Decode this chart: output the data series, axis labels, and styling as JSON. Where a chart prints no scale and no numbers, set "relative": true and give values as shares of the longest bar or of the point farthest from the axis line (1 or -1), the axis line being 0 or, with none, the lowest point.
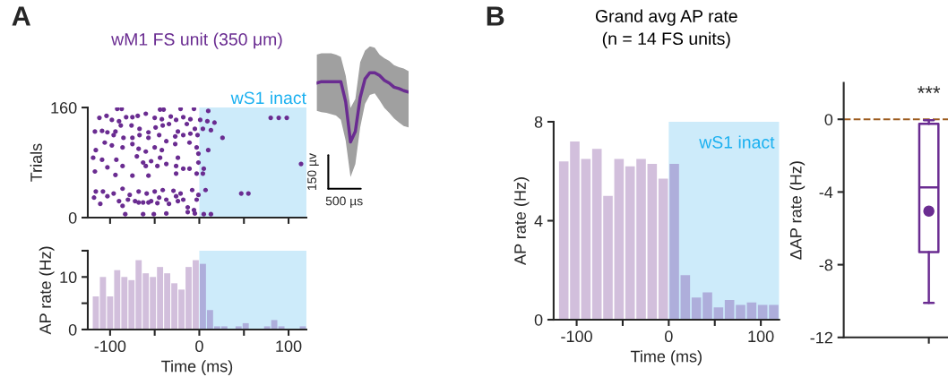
{
  "chart_data": [
    {
      "type": "scatter",
      "title": "wM1 FS unit (350 μm)",
      "ylabel": "Trials",
      "marker": "circle",
      "xlim": [
        -125,
        120
      ],
      "ylim": [
        0,
        160
      ],
      "yticks": [
        0,
        160
      ],
      "xticks": [
        {
          "value": -100,
          "label": null
        },
        {
          "value": -50,
          "label": null
        },
        {
          "value": 0,
          "label": null
        },
        {
          "value": 50,
          "label": null
        },
        {
          "value": 100,
          "label": null
        }
      ],
      "tick_labels": "y",
      "grid": false,
      "legend": false,
      "bands": [
        {
          "axis": "x",
          "from": 0,
          "to": 120,
          "label": "wS1 inact",
          "color": "#cdebfa"
        }
      ],
      "annotations": [
        "A"
      ],
      "series": [
        {
          "color": "#6a2c91",
          "x": [
            -92,
            -87,
            -44,
            -40,
            -21,
            -6,
            10,
            -112,
            -104,
            -98,
            -90,
            -82,
            -75,
            -69,
            -60,
            -50,
            -42,
            -32,
            -26,
            -18,
            -10,
            1,
            9,
            17,
            -117,
            -109,
            -103,
            -94,
            -88,
            -76,
            -67,
            -57,
            -49,
            -41,
            -34,
            -24,
            -14,
            -5,
            4,
            13,
            -106,
            -96,
            -85,
            -75,
            -67,
            -57,
            -45,
            -37,
            -27,
            -18,
            -10,
            -2,
            -116,
            -98,
            -86,
            -75,
            -68,
            -60,
            -50,
            -42,
            -27,
            -11,
            -3,
            10,
            -119,
            -109,
            -93,
            -70,
            -63,
            -54,
            -44,
            -24,
            -1,
            -103,
            -86,
            -60,
            -47,
            -37,
            -26,
            -11,
            -1,
            5,
            -117,
            -94,
            -75,
            -57,
            -18,
            -26,
            -3,
            4,
            -116,
            -108,
            -96,
            -86,
            -78,
            -68,
            -59,
            -50,
            -41,
            -29,
            -21,
            -8,
            -1,
            7,
            -118,
            -103,
            -90,
            -80,
            -72,
            -63,
            -54,
            -45,
            -37,
            -26,
            -18,
            -3,
            -111,
            -86,
            -68,
            -57,
            -47,
            -34,
            -24,
            -13,
            -6,
            -83,
            -63,
            -51,
            -37,
            -13,
            -5,
            5,
            13,
            26,
            80,
            89,
            98,
            114,
            47,
            55
          ],
          "values": [
            158,
            158,
            157,
            157,
            158,
            158,
            155,
            145,
            148,
            142,
            140,
            146,
            146,
            148,
            151,
            145,
            143,
            147,
            142,
            146,
            143,
            142,
            140,
            138,
            125,
            126,
            124,
            125,
            134,
            134,
            129,
            124,
            131,
            134,
            136,
            125,
            136,
            129,
            129,
            127,
            109,
            120,
            116,
            116,
            120,
            116,
            120,
            111,
            118,
            120,
            122,
            120,
            98,
            105,
            102,
            107,
            100,
            96,
            102,
            98,
            107,
            109,
            102,
            98,
            87,
            84,
            84,
            89,
            80,
            82,
            87,
            87,
            93,
            73,
            75,
            75,
            75,
            78,
            75,
            71,
            80,
            71,
            67,
            62,
            61,
            61,
            71,
            64,
            64,
            64,
            38,
            38,
            35,
            42,
            33,
            38,
            35,
            38,
            40,
            39,
            35,
            40,
            33,
            40,
            29,
            31,
            24,
            26,
            24,
            22,
            24,
            29,
            26,
            31,
            26,
            26,
            20,
            17,
            22,
            22,
            21,
            20,
            24,
            15,
            11,
            5,
            5,
            5,
            6,
            8,
            6,
            5,
            5,
            116,
            145,
            145,
            145,
            78,
            35,
            35
          ]
        }
      ]
    },
    {
      "type": "line",
      "relative": true,
      "annotations": [
        "150 µv",
        "500 µs"
      ],
      "categories": [
        null,
        null,
        null,
        null,
        null,
        null,
        null,
        null,
        null,
        null,
        null,
        null,
        null,
        null,
        null,
        null,
        null,
        null,
        null,
        null
      ],
      "series": [
        {
          "color": "#6a2c91",
          "values": [
            0.85,
            0.87,
            0.87,
            0.87,
            0.87,
            0.87,
            0.58,
            0,
            0.15,
            0.64,
            0.91,
            1,
            1,
            0.96,
            0.89,
            0.85,
            0.79,
            0.77,
            0.74,
            0.72
          ],
          "upper": [
            1.26,
            1.28,
            1.28,
            1.28,
            1.26,
            1.23,
            0.96,
            0.49,
            0.62,
            1.15,
            1.32,
            1.38,
            1.36,
            1.26,
            1.21,
            1.17,
            1.11,
            1.08,
            1.06,
            1.02
          ],
          "lower": [
            0.45,
            0.43,
            0.42,
            0.4,
            0.38,
            0.32,
            0.02,
            -0.51,
            -0.32,
            0.21,
            0.55,
            0.68,
            0.7,
            0.6,
            0.49,
            0.42,
            0.34,
            0.28,
            0.23,
            0.21
          ]
        }
      ]
    },
    {
      "type": "histogram",
      "xlabel": "Time (ms)",
      "ylabel": "AP rate (Hz)",
      "xlim": [
        -125,
        120
      ],
      "ylim": [
        0,
        15
      ],
      "xticks": [
        -100,
        {
          "value": -50,
          "label": null
        },
        0,
        {
          "value": 50,
          "label": null
        },
        100
      ],
      "yticks": [
        0,
        {
          "value": 5,
          "label": null
        },
        10,
        {
          "value": 15,
          "label": null
        }
      ],
      "grid": false,
      "legend": false,
      "bands": [
        {
          "axis": "x",
          "from": 0,
          "to": 120,
          "color": "#cdebfa"
        }
      ],
      "bins": [
        -120,
        -112,
        -104,
        -96,
        -88,
        -80,
        -72,
        -64,
        -56,
        -48,
        -40,
        -32,
        -24,
        -16,
        -8,
        0,
        8,
        16,
        24,
        32,
        40,
        48,
        56,
        64,
        72,
        80,
        88,
        96,
        104,
        112,
        120
      ],
      "values": [
        6.3,
        10,
        6.3,
        11.3,
        10,
        9.4,
        13.2,
        10.7,
        10,
        11.9,
        10.7,
        8.8,
        7.6,
        11.9,
        13.2,
        12.5,
        3.7,
        0.6,
        0.6,
        0,
        0.6,
        1.2,
        0,
        0,
        0.6,
        1.8,
        0.6,
        0,
        0,
        0.6
      ],
      "colors": [
        "#d2bfdc",
        "#d2bfdc",
        "#d2bfdc",
        "#d2bfdc",
        "#d2bfdc",
        "#d2bfdc",
        "#d2bfdc",
        "#d2bfdc",
        "#d2bfdc",
        "#d2bfdc",
        "#d2bfdc",
        "#d2bfdc",
        "#d2bfdc",
        "#d2bfdc",
        "#d2bfdc",
        "#aeaedb",
        "#aeaedb",
        "#aeaedb",
        "#aeaedb",
        "#aeaedb",
        "#aeaedb",
        "#aeaedb",
        "#aeaedb",
        "#aeaedb",
        "#aeaedb",
        "#aeaedb",
        "#aeaedb",
        "#aeaedb",
        "#aeaedb",
        "#aeaedb"
      ]
    },
    {
      "type": "histogram",
      "title": "Grand avg AP rate\n(n = 14 FS units)",
      "xlabel": "Time (ms)",
      "ylabel": "AP rate (Hz)",
      "xlim": [
        -125,
        120
      ],
      "ylim": [
        0,
        8
      ],
      "xticks": [
        -100,
        {
          "value": -50,
          "label": null
        },
        0,
        {
          "value": 50,
          "label": null
        },
        100
      ],
      "yticks": [
        0,
        4,
        8
      ],
      "grid": false,
      "legend": false,
      "bands": [
        {
          "axis": "x",
          "from": 0,
          "to": 120,
          "label": "wS1 inact",
          "color": "#cdebfa"
        }
      ],
      "annotations": [
        "B"
      ],
      "bins": [
        -120,
        -108,
        -96,
        -84,
        -72,
        -60,
        -48,
        -36,
        -24,
        -12,
        0,
        12,
        24,
        36,
        48,
        60,
        72,
        84,
        96,
        108,
        120
      ],
      "values": [
        6.4,
        7.2,
        6.5,
        6.9,
        5,
        6.5,
        6.2,
        6.5,
        6.3,
        5.7,
        6.3,
        1.8,
        0.9,
        1.1,
        0.5,
        0.8,
        0.6,
        0.7,
        0.6,
        0.6
      ],
      "colors": [
        "#d2bfdc",
        "#d2bfdc",
        "#d2bfdc",
        "#d2bfdc",
        "#d2bfdc",
        "#d2bfdc",
        "#d2bfdc",
        "#d2bfdc",
        "#d2bfdc",
        "#d2bfdc",
        "#aeaedb",
        "#aeaedb",
        "#aeaedb",
        "#aeaedb",
        "#aeaedb",
        "#aeaedb",
        "#aeaedb",
        "#aeaedb",
        "#aeaedb",
        "#aeaedb"
      ]
    },
    {
      "type": "box",
      "ylabel": "ΔAP rate (Hz)",
      "categories": [
        null
      ],
      "ylim": [
        -12,
        2
      ],
      "yticks": [
        0,
        -4,
        -8,
        -12
      ],
      "grid": false,
      "legend": false,
      "ref_lines": [
        {
          "axis": "y",
          "value": 0,
          "color": "#9c5b1e",
          "line_style": "dashed"
        }
      ],
      "annotations": [
        "***"
      ],
      "colors": [
        "#6a2c91"
      ],
      "boxes": [
        {
          "low": -10.1,
          "q1": -7.3,
          "median": -3.75,
          "q3": -0.25,
          "high": -0.05,
          "mean": -5.05
        }
      ]
    }
  ]
}
